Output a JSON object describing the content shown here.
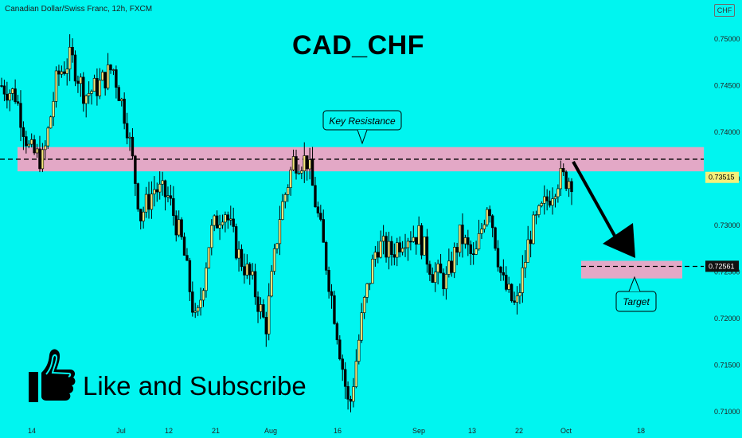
{
  "header": {
    "symbol_info": "Canadian Dollar/Swiss Franc, 12h, FXCM",
    "currency_badge": "CHF"
  },
  "chart_data": {
    "type": "candlestick",
    "title": "CAD_CHF",
    "y_axis": {
      "min": 0.708,
      "max": 0.7535,
      "ticks": [
        "0.75000",
        "0.74500",
        "0.74000",
        "0.73500",
        "0.73000",
        "0.72500",
        "0.72000",
        "0.71500",
        "0.71000"
      ],
      "position": "right"
    },
    "x_axis": {
      "ticks": [
        "14",
        "Jul",
        "12",
        "21",
        "Aug",
        "16",
        "Sep",
        "13",
        "22",
        "Oct",
        "18"
      ]
    },
    "price_labels": [
      {
        "value": 0.73515,
        "label": "0.73515",
        "color": "#f5f07a"
      },
      {
        "value": 0.72561,
        "label": "0.72561",
        "color": "#111111"
      }
    ],
    "zones": [
      {
        "name": "Key Resistance",
        "from": 0.7358,
        "to": 0.7384,
        "color": "#e3a8c6"
      },
      {
        "name": "Target",
        "from": 0.7243,
        "to": 0.7262,
        "color": "#e3a8c6"
      }
    ],
    "levels": [
      0.7371,
      0.7256
    ],
    "annotations": [
      "Key Resistance",
      "Target"
    ],
    "series_trend": [
      0.745,
      0.744,
      0.738,
      0.737,
      0.746,
      0.748,
      0.744,
      0.745,
      0.747,
      0.741,
      0.731,
      0.734,
      0.733,
      0.728,
      0.719,
      0.729,
      0.732,
      0.727,
      0.724,
      0.719,
      0.731,
      0.737,
      0.737,
      0.729,
      0.72,
      0.71,
      0.721,
      0.728,
      0.727,
      0.729,
      0.729,
      0.725,
      0.724,
      0.729,
      0.726,
      0.733,
      0.724,
      0.721,
      0.729,
      0.732,
      0.735,
      0.735
    ]
  },
  "cta": {
    "text": "Like and Subscribe"
  }
}
